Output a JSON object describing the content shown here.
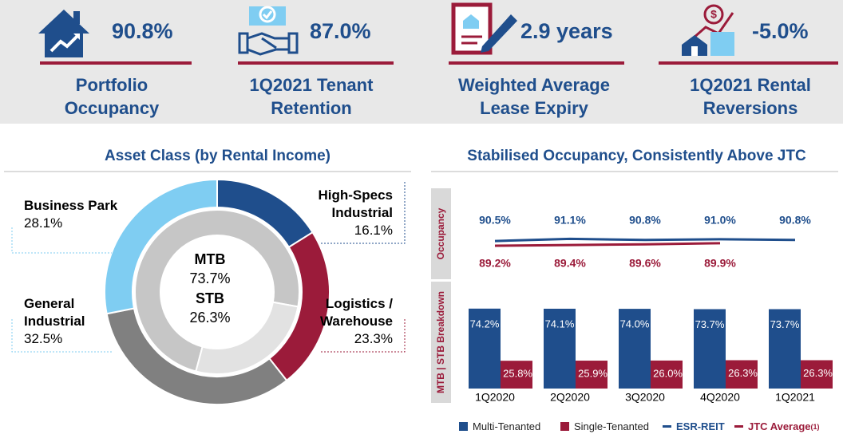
{
  "kpis": [
    {
      "value": "90.8%",
      "label": "Portfolio Occupancy"
    },
    {
      "value": "87.0%",
      "label": "1Q2021 Tenant Retention"
    },
    {
      "value": "2.9 years",
      "label": "Weighted Average Lease Expiry"
    },
    {
      "value": "-5.0%",
      "label": "1Q2021 Rental Reversions"
    }
  ],
  "chart_data": [
    {
      "type": "pie",
      "title": "Asset Class (by Rental Income)",
      "categories": [
        "High-Specs Industrial",
        "Logistics / Warehouse",
        "General Industrial",
        "Business Park"
      ],
      "values": [
        16.1,
        23.3,
        32.5,
        28.1
      ],
      "value_labels": [
        "16.1%",
        "23.3%",
        "32.5%",
        "28.1%"
      ],
      "colors": [
        "#1f4e8c",
        "#9b1b3a",
        "#808080",
        "#7fcdf2"
      ],
      "inner": {
        "categories": [
          "MTB",
          "STB"
        ],
        "values": [
          73.7,
          26.3
        ],
        "value_labels": [
          "73.7%",
          "26.3%"
        ],
        "colors": [
          "#c6c6c6",
          "#e2e2e2"
        ]
      }
    },
    {
      "type": "combo",
      "title": "Stabilised Occupancy, Consistently Above JTC",
      "categories": [
        "1Q2020",
        "2Q2020",
        "3Q2020",
        "4Q2020",
        "1Q2021"
      ],
      "line_axis_label": "Occupancy",
      "bar_axis_label": "MTB | STB Breakdown",
      "line_ylim": [
        80,
        105
      ],
      "bar_ylim": [
        0,
        100
      ],
      "bar_series": [
        {
          "name": "Multi-Tenanted",
          "color": "#1f4e8c",
          "values": [
            74.2,
            74.1,
            74.0,
            73.7,
            73.7
          ],
          "value_labels": [
            "74.2%",
            "74.1%",
            "74.0%",
            "73.7%",
            "73.7%"
          ]
        },
        {
          "name": "Single-Tenanted",
          "color": "#9b1b3a",
          "values": [
            25.8,
            25.9,
            26.0,
            26.3,
            26.3
          ],
          "value_labels": [
            "25.8%",
            "25.9%",
            "26.0%",
            "26.3%",
            "26.3%"
          ]
        }
      ],
      "line_series": [
        {
          "name": "ESR-REIT",
          "color": "#1f4e8c",
          "values": [
            90.5,
            91.1,
            90.8,
            91.0,
            90.8
          ],
          "value_labels": [
            "90.5%",
            "91.1%",
            "90.8%",
            "91.0%",
            "90.8%"
          ]
        },
        {
          "name": "JTC Average",
          "color": "#9b1b3a",
          "values": [
            89.2,
            89.4,
            89.6,
            89.9,
            null
          ],
          "value_labels": [
            "89.2%",
            "89.4%",
            "89.6%",
            "89.9%",
            null
          ]
        }
      ],
      "legend_note": "(1)"
    }
  ]
}
